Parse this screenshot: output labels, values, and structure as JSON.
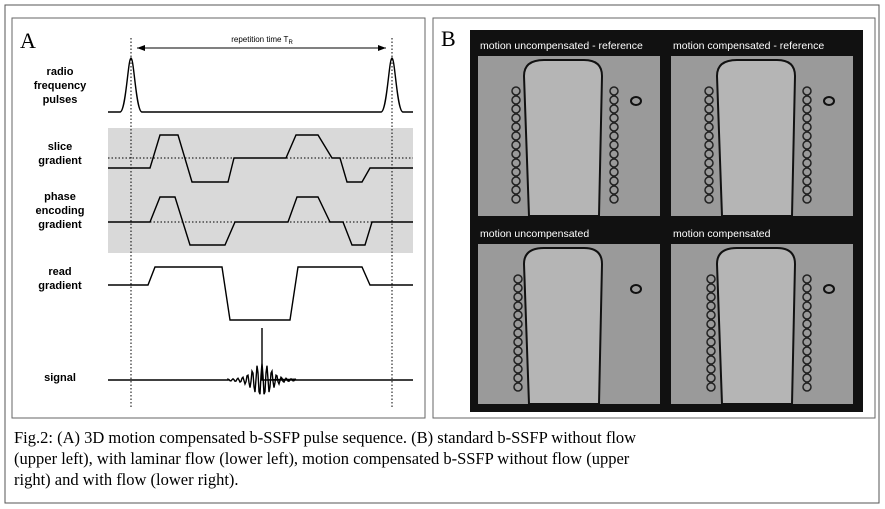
{
  "panel_a": {
    "label": "A",
    "arrow_label": "repetition time T",
    "arrow_subscript": "R",
    "rows": [
      {
        "lines": [
          "radio",
          "frequency",
          "pulses"
        ]
      },
      {
        "lines": [
          "slice",
          "gradient"
        ]
      },
      {
        "lines": [
          "phase",
          "encoding",
          "gradient"
        ]
      },
      {
        "lines": [
          "read",
          "gradient"
        ]
      },
      {
        "lines": [
          "signal"
        ]
      }
    ]
  },
  "panel_b": {
    "label": "B",
    "images": [
      {
        "label": "motion uncompensated - reference"
      },
      {
        "label": "motion compensated - reference"
      },
      {
        "label": "motion uncompensated"
      },
      {
        "label": "motion compensated"
      }
    ]
  },
  "caption": {
    "lines": [
      "Fig.2: (A) 3D motion compensated b-SSFP pulse sequence. (B) standard b-SSFP without flow",
      "(upper left), with laminar flow  (lower left), motion compensated b-SSFP without flow (upper",
      "right) and with flow (lower right)."
    ]
  }
}
